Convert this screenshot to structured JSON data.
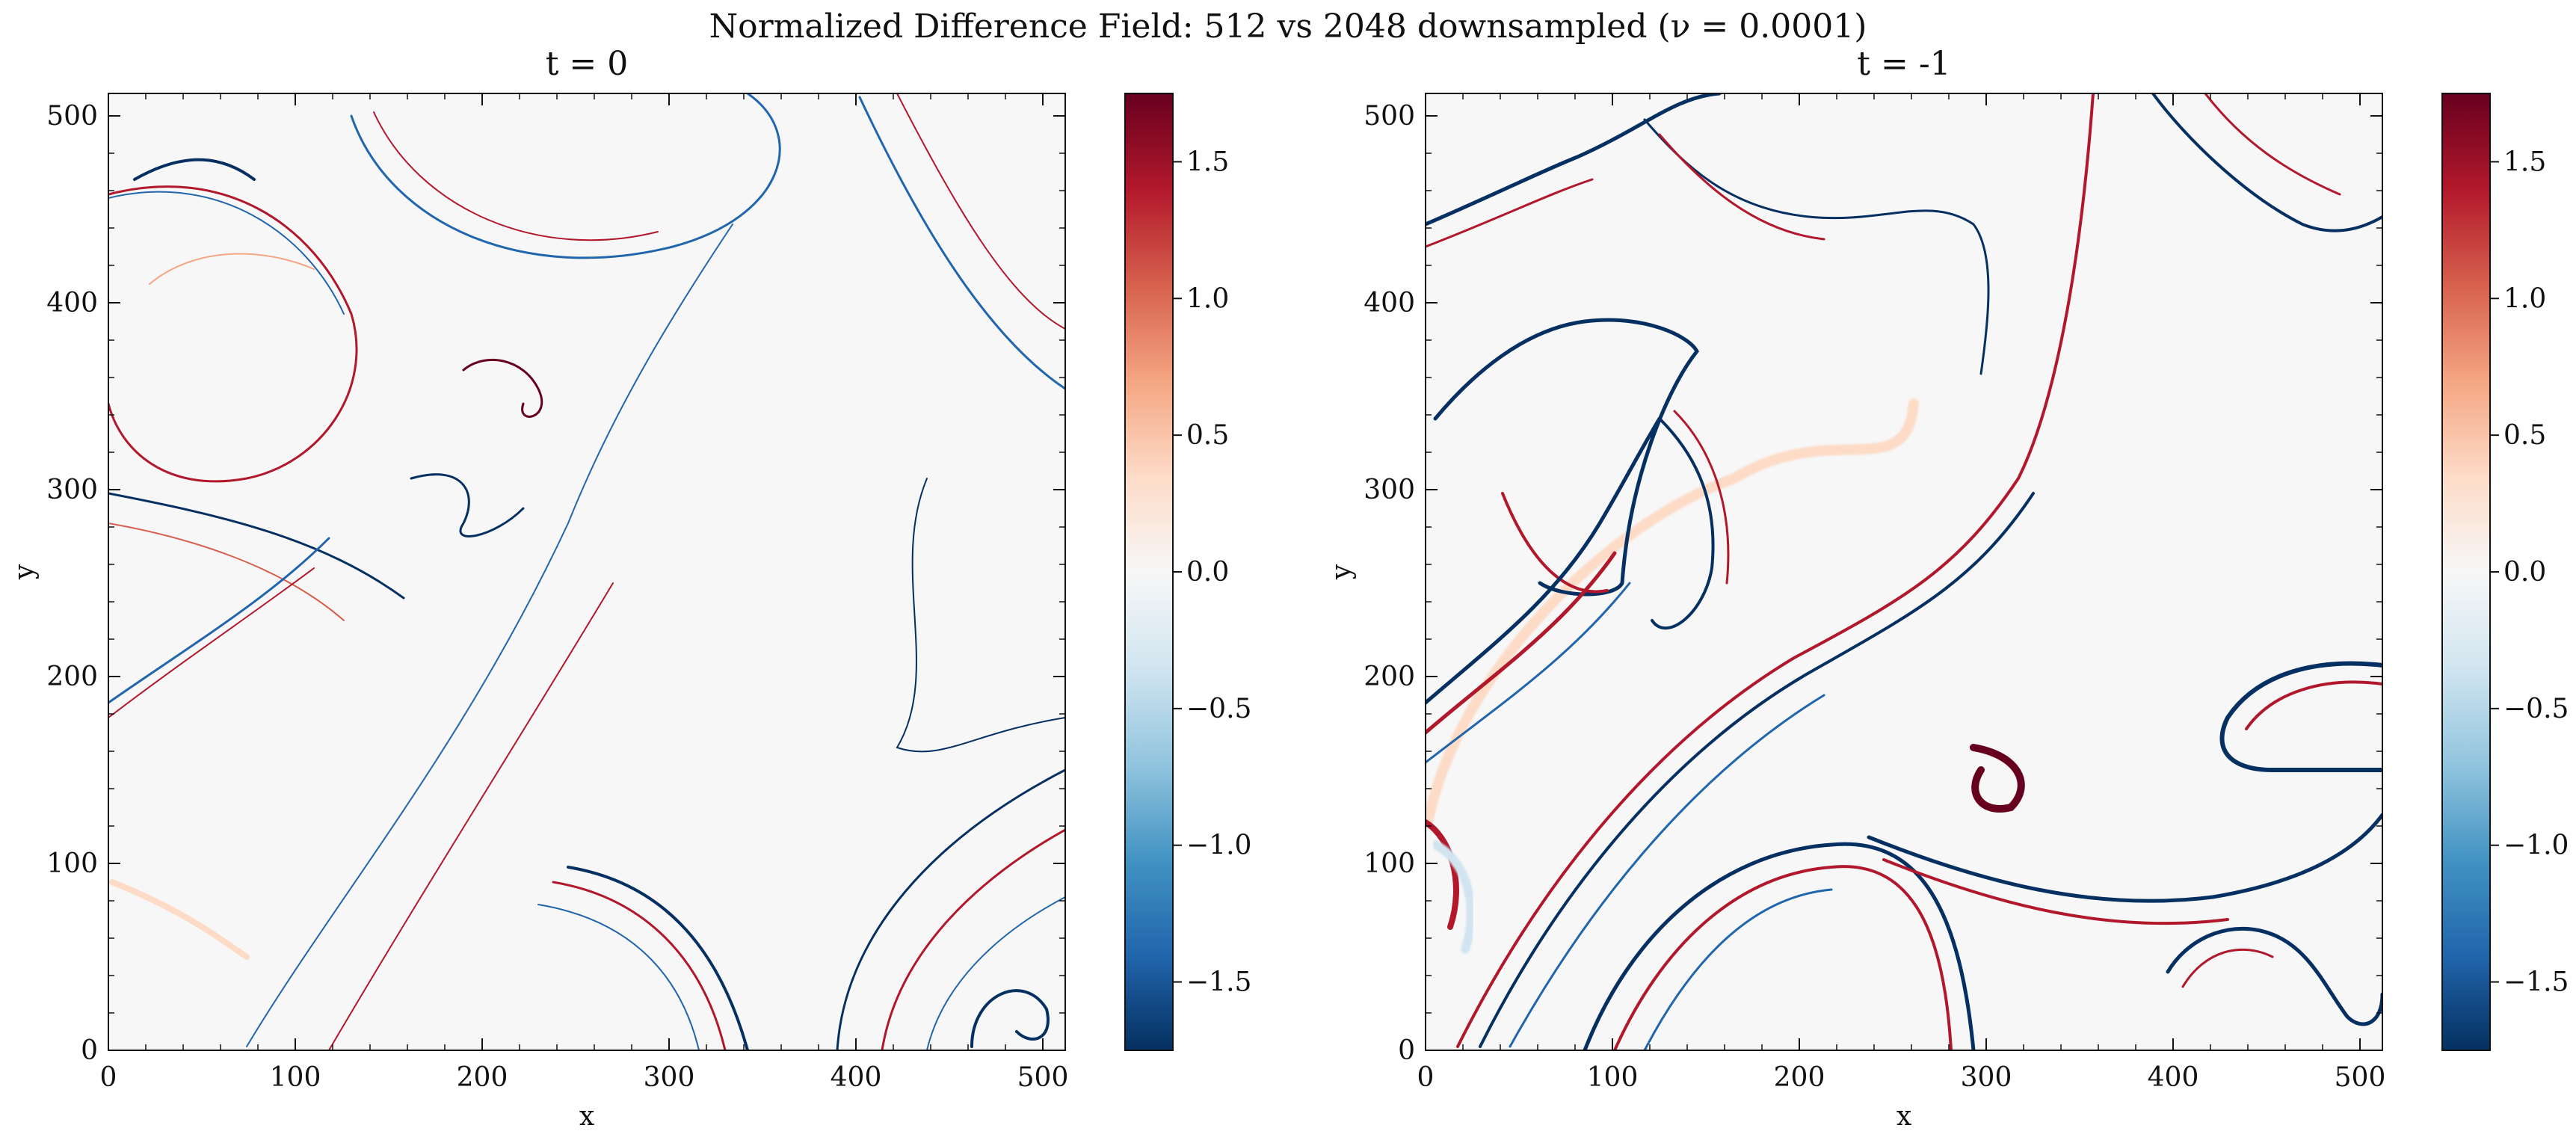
{
  "figure": {
    "suptitle": "Normalized Difference Field: 512 vs 2048 downsampled (ν = 0.0001)"
  },
  "chart_data": [
    {
      "type": "heatmap",
      "title": "t = 0",
      "xlabel": "x",
      "ylabel": "y",
      "xlim": [
        0,
        512
      ],
      "ylim": [
        0,
        512
      ],
      "xticks": [
        0,
        100,
        200,
        300,
        400,
        500
      ],
      "yticks": [
        0,
        100,
        200,
        300,
        400,
        500
      ],
      "colormap": "RdBu_r",
      "colorbar": {
        "range": [
          -1.75,
          1.75
        ],
        "ticks": [
          -1.5,
          -1.0,
          -0.5,
          0.0,
          0.5,
          1.0,
          1.5
        ],
        "tick_labels": [
          "−1.5",
          "−1.0",
          "−0.5",
          "0.0",
          "0.5",
          "1.0",
          "1.5"
        ]
      }
    },
    {
      "type": "heatmap",
      "title": "t = -1",
      "xlabel": "x",
      "ylabel": "y",
      "xlim": [
        0,
        512
      ],
      "ylim": [
        0,
        512
      ],
      "xticks": [
        0,
        100,
        200,
        300,
        400,
        500
      ],
      "yticks": [
        0,
        100,
        200,
        300,
        400,
        500
      ],
      "colormap": "RdBu_r",
      "colorbar": {
        "range": [
          -1.75,
          1.75
        ],
        "ticks": [
          -1.5,
          -1.0,
          -0.5,
          0.0,
          0.5,
          1.0,
          1.5
        ],
        "tick_labels": [
          "−1.5",
          "−1.0",
          "−0.5",
          "0.0",
          "0.5",
          "1.0",
          "1.5"
        ]
      }
    }
  ],
  "colors": {
    "neg_extreme": "#053061",
    "neg_mid": "#4393c3",
    "neg_light": "#d1e5f0",
    "zero": "#f7f7f7",
    "pos_light": "#fddbc7",
    "pos_mid": "#d6604d",
    "pos_extreme": "#67001f"
  }
}
